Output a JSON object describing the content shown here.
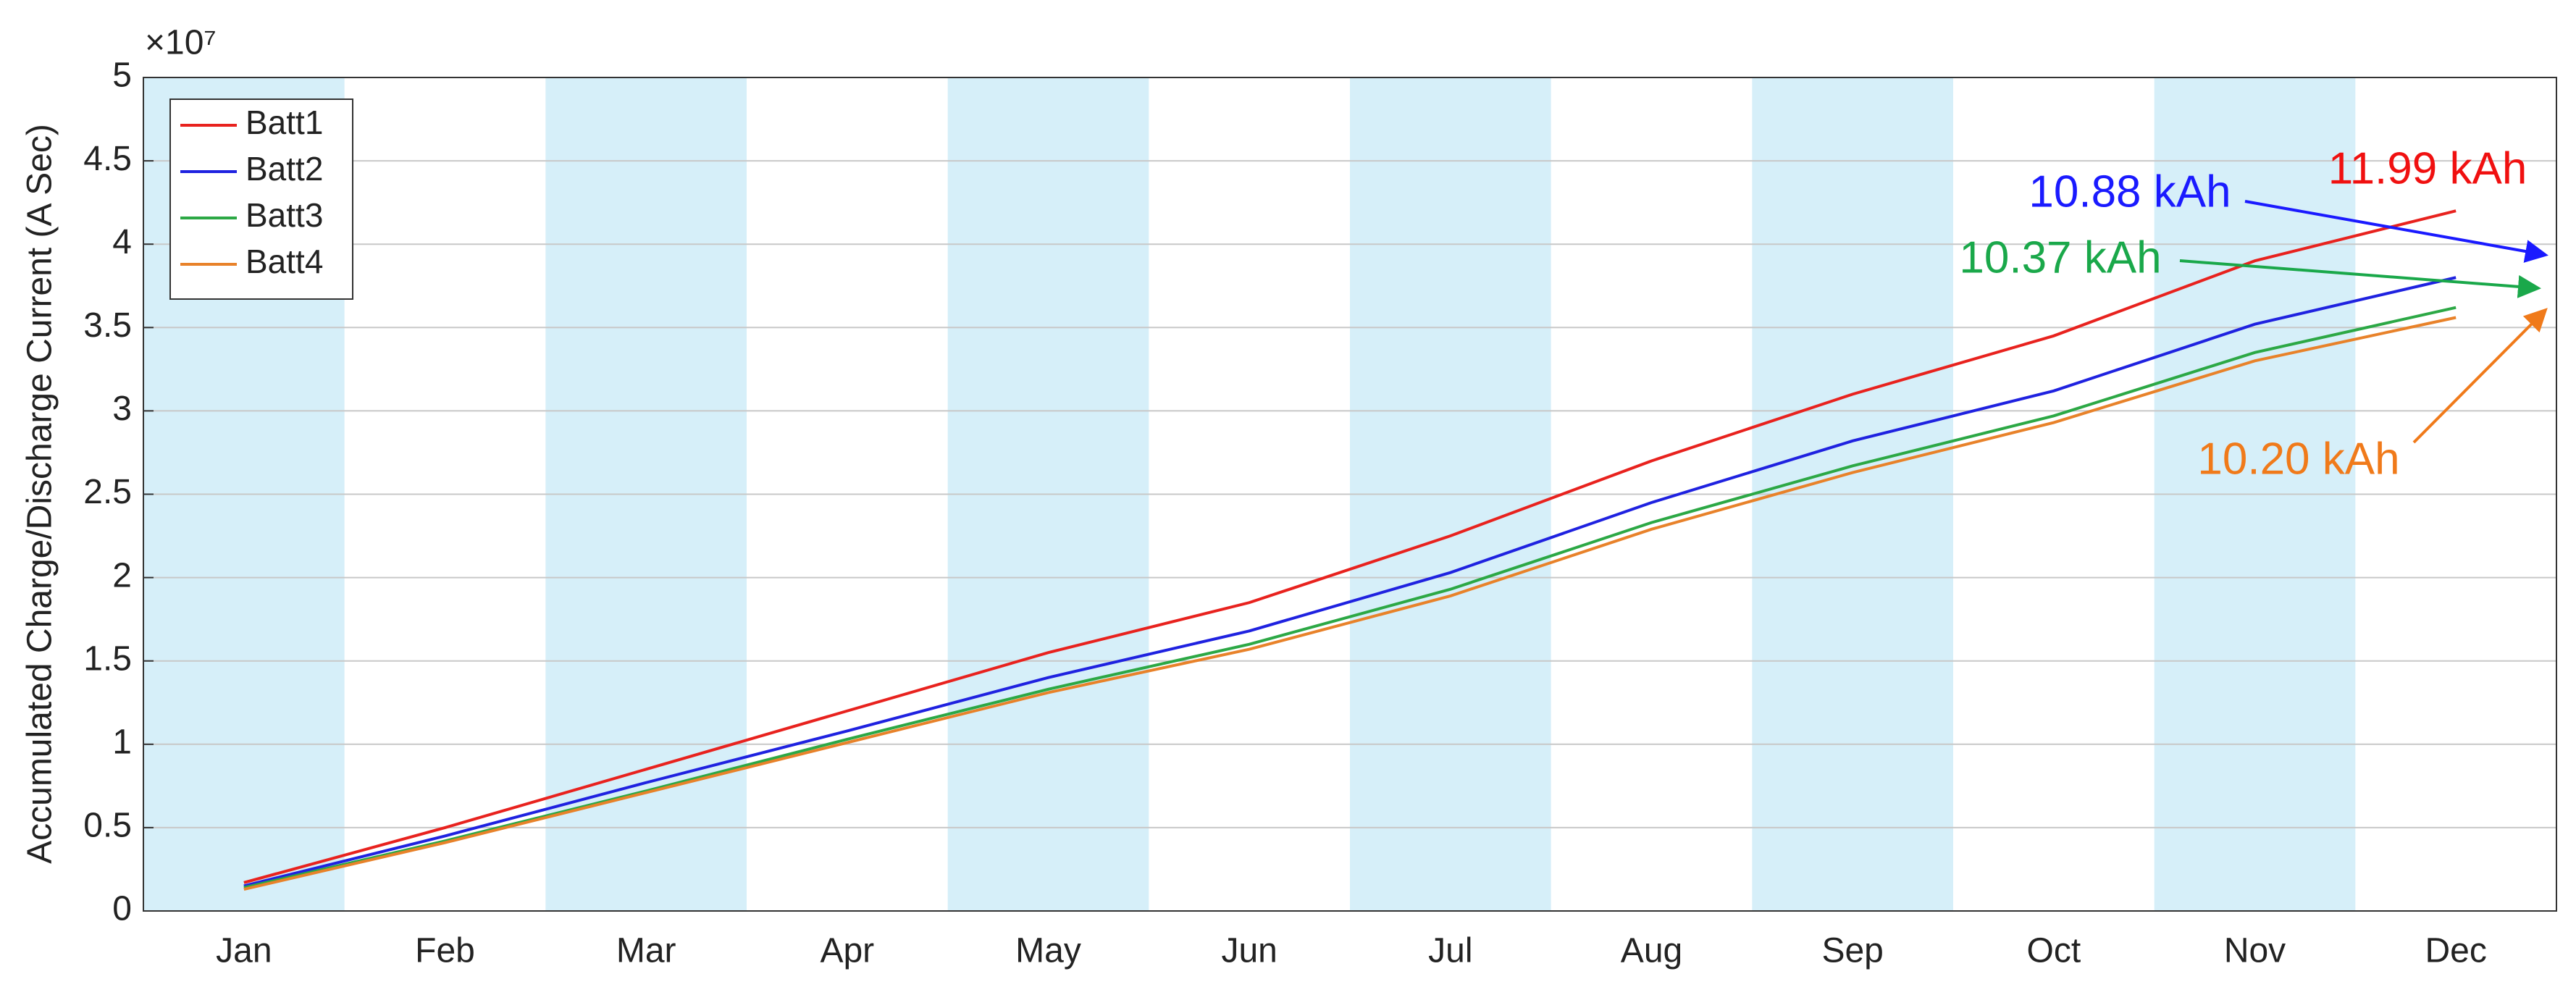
{
  "chart_data": {
    "type": "line",
    "y_label": "Accumulated Charge/Discharge Current (A Sec)",
    "y_multiplier": "×10⁷",
    "categories": [
      "Jan",
      "Feb",
      "Mar",
      "Apr",
      "May",
      "Jun",
      "Jul",
      "Aug",
      "Sep",
      "Oct",
      "Nov",
      "Dec"
    ],
    "series": [
      {
        "name": "Batt1",
        "color": "#e8221e",
        "values": [
          0.17,
          0.5,
          0.85,
          1.2,
          1.55,
          1.85,
          2.25,
          2.7,
          3.1,
          3.45,
          3.9,
          4.2
        ]
      },
      {
        "name": "Batt2",
        "color": "#1f22e0",
        "values": [
          0.15,
          0.45,
          0.77,
          1.08,
          1.4,
          1.68,
          2.03,
          2.45,
          2.82,
          3.12,
          3.52,
          3.8
        ]
      },
      {
        "name": "Batt3",
        "color": "#2ca845",
        "values": [
          0.14,
          0.42,
          0.72,
          1.03,
          1.33,
          1.6,
          1.93,
          2.33,
          2.67,
          2.97,
          3.35,
          3.62
        ]
      },
      {
        "name": "Batt4",
        "color": "#e8822a",
        "values": [
          0.13,
          0.41,
          0.71,
          1.01,
          1.31,
          1.57,
          1.89,
          2.29,
          2.63,
          2.93,
          3.3,
          3.56
        ]
      }
    ],
    "ylim": [
      0,
      5
    ],
    "yticks": [
      0,
      0.5,
      1,
      1.5,
      2,
      2.5,
      3,
      3.5,
      4,
      4.5,
      5
    ],
    "grid": true,
    "legend": "upper-left",
    "band_color": "#d6eff9",
    "annotations": [
      {
        "text": "11.99 kAh",
        "color": "#f01010"
      },
      {
        "text": "10.88 kAh",
        "color": "#1a1aff"
      },
      {
        "text": "10.37 kAh",
        "color": "#1aa84a"
      },
      {
        "text": "10.20 kAh",
        "color": "#f07a1a"
      }
    ]
  }
}
